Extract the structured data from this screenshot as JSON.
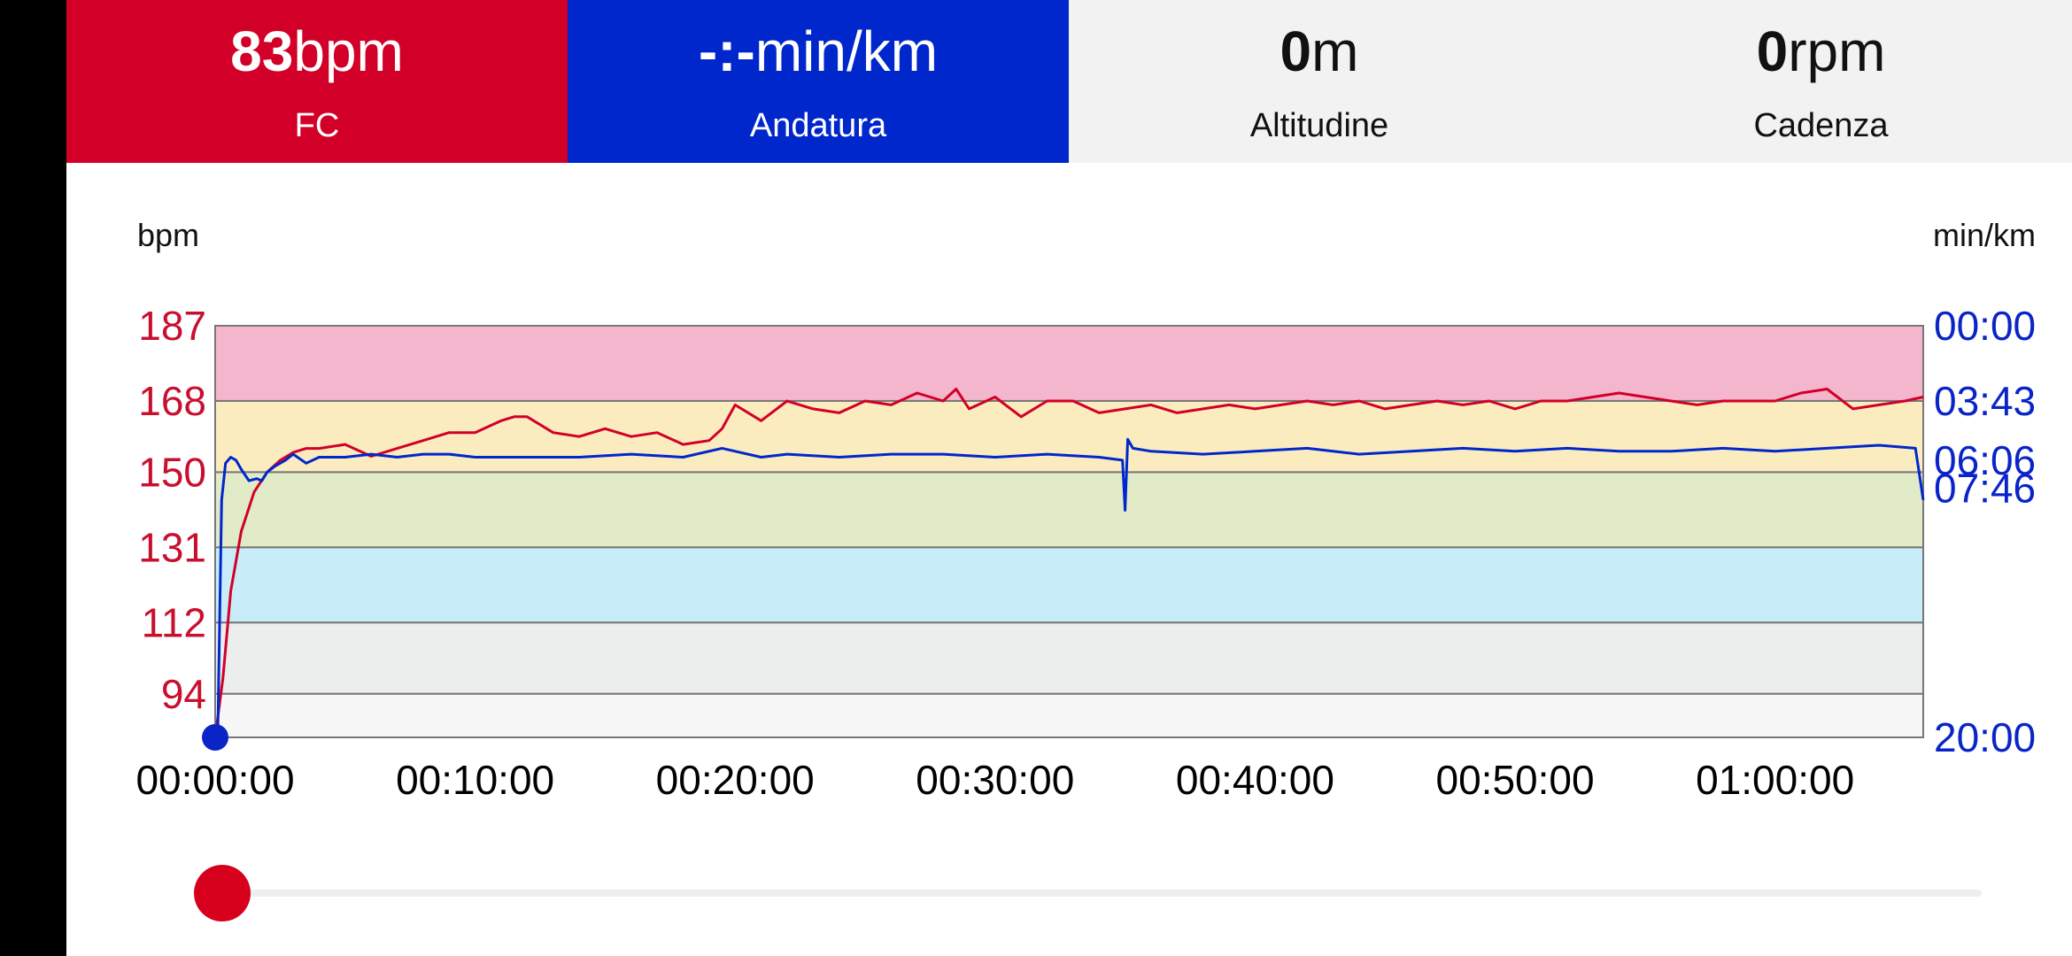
{
  "metrics": {
    "heart_rate": {
      "value": "83",
      "unit": "bpm",
      "label": "FC"
    },
    "pace": {
      "value": "-:-",
      "unit": "min/km",
      "label": "Andatura"
    },
    "altitude": {
      "value": "0",
      "unit": "m",
      "label": "Altitudine"
    },
    "cadence": {
      "value": "0",
      "unit": "rpm",
      "label": "Cadenza"
    }
  },
  "colors": {
    "heart_rate": "#d20028",
    "pace": "#0027cc",
    "zones": [
      "#f4b6cd",
      "#fbecc0",
      "#e2ebc8",
      "#c9edf8",
      "#eceeed",
      "#f7f7f7"
    ]
  },
  "chart_data": {
    "type": "line",
    "left_axis_unit": "bpm",
    "right_axis_unit": "min/km",
    "left_ticks": [
      "187",
      "168",
      "150",
      "131",
      "112",
      "94"
    ],
    "right_ticks": [
      "00:00",
      "03:43",
      "06:06",
      "07:46",
      "20:00"
    ],
    "x_ticks": [
      "00:00:00",
      "00:10:00",
      "00:20:00",
      "00:30:00",
      "00:40:00",
      "00:50:00",
      "01:00:00"
    ],
    "x_range_minutes": [
      0,
      65.7
    ],
    "hr_range_bpm": [
      83,
      187
    ],
    "heart_rate_zones_bpm": [
      [
        168,
        187
      ],
      [
        150,
        168
      ],
      [
        131,
        150
      ],
      [
        112,
        131
      ],
      [
        94,
        112
      ],
      [
        83,
        94
      ]
    ],
    "series": [
      {
        "name": "FC",
        "unit": "bpm",
        "x_minutes": [
          0,
          0.3,
          0.6,
          1,
          1.5,
          2,
          2.5,
          3,
          3.5,
          4,
          5,
          6,
          7,
          8,
          9,
          10,
          11,
          11.5,
          12,
          13,
          14,
          15,
          16,
          17,
          18,
          19,
          19.5,
          20,
          21,
          22,
          23,
          24,
          25,
          26,
          27,
          28,
          28.5,
          29,
          30,
          31,
          32,
          33,
          34,
          35,
          36,
          37,
          38,
          39,
          40,
          41,
          42,
          43,
          44,
          45,
          46,
          47,
          48,
          49,
          50,
          51,
          52,
          53,
          54,
          55,
          56,
          57,
          58,
          59,
          60,
          61,
          62,
          63,
          64,
          65,
          65.7
        ],
        "values": [
          83,
          98,
          120,
          135,
          145,
          150,
          153,
          155,
          156,
          156,
          157,
          154,
          156,
          158,
          160,
          160,
          163,
          164,
          164,
          160,
          159,
          161,
          159,
          160,
          157,
          158,
          161,
          167,
          163,
          168,
          166,
          165,
          168,
          167,
          170,
          168,
          171,
          166,
          169,
          164,
          168,
          168,
          165,
          166,
          167,
          165,
          166,
          167,
          166,
          167,
          168,
          167,
          168,
          166,
          167,
          168,
          167,
          168,
          166,
          168,
          168,
          169,
          170,
          169,
          168,
          167,
          168,
          168,
          168,
          170,
          171,
          166,
          167,
          168,
          169
        ]
      },
      {
        "name": "Andatura",
        "unit": "min/km",
        "x_minutes": [
          0,
          0.1,
          0.25,
          0.4,
          0.6,
          0.8,
          1,
          1.3,
          1.6,
          1.8,
          2,
          2.3,
          2.7,
          3,
          3.5,
          4,
          5,
          6,
          7,
          8,
          9,
          10,
          12,
          14,
          16,
          18,
          19.5,
          20,
          21,
          22,
          24,
          26,
          28,
          30,
          32,
          34,
          34.9,
          35,
          35.1,
          35.3,
          36,
          38,
          40,
          42,
          44,
          46,
          48,
          50,
          52,
          54,
          56,
          58,
          60,
          62,
          64,
          65.4,
          65.7
        ],
        "values": [
          20.0,
          20.0,
          7.4,
          5.8,
          5.6,
          5.7,
          6.0,
          6.5,
          6.4,
          6.5,
          6.1,
          5.9,
          5.7,
          5.5,
          5.8,
          5.6,
          5.6,
          5.5,
          5.6,
          5.5,
          5.5,
          5.6,
          5.6,
          5.6,
          5.5,
          5.6,
          5.3,
          5.4,
          5.6,
          5.5,
          5.6,
          5.5,
          5.5,
          5.6,
          5.5,
          5.6,
          5.7,
          7.9,
          5.0,
          5.3,
          5.4,
          5.5,
          5.4,
          5.3,
          5.5,
          5.4,
          5.3,
          5.4,
          5.3,
          5.4,
          5.4,
          5.3,
          5.4,
          5.3,
          5.2,
          5.3,
          7.4
        ]
      }
    ]
  },
  "slider": {
    "position_fraction": 0.0
  }
}
